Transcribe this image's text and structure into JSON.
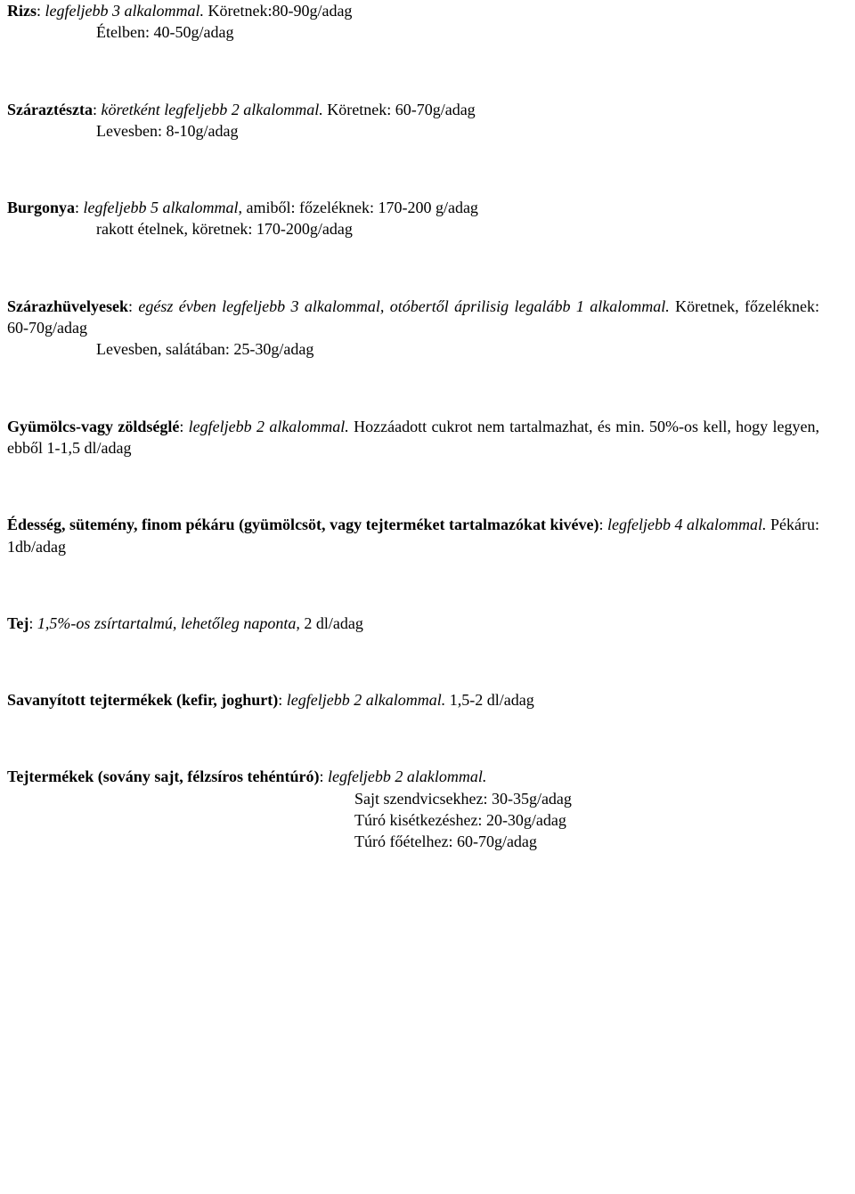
{
  "rizs": {
    "label_bold": "Rizs",
    "label_rest": ": ",
    "desc_italic": "legfeljebb 3 alkalommal.",
    "desc_rest": " Köretnek:80-90g/adag",
    "line2": "Ételben: 40-50g/adag"
  },
  "szaraz": {
    "label_bold": "Száraztészta",
    "sep": ": ",
    "desc_italic": "köretként legfeljebb 2 alkalommal.",
    "desc_rest": " Köretnek: 60-70g/adag",
    "line2": "Levesben: 8-10g/adag"
  },
  "burgonya": {
    "label_bold": "Burgonya",
    "sep": ": ",
    "desc_italic": "legfeljebb 5 alkalommal",
    "rest1": ", amiből: főzeléknek: 170-200 g/adag",
    "line2": "rakott ételnek, köretnek: 170-200g/adag"
  },
  "szarazhuv": {
    "label_bold": "Szárazhüvelyesek",
    "sep": ": ",
    "part1_italic": "egész évben legfeljebb 3 alkalommal, otóbertől áprilisig legalább 1 alkalommal.",
    "rest1": " Köretnek, főzeléknek: 60-70g/adag",
    "line2": "Levesben, salátában: 25-30g/adag"
  },
  "juice": {
    "label_bold": "Gyümölcs-vagy zöldséglé",
    "sep": ": ",
    "italic1": "legfeljebb 2 alkalommal.",
    "rest": " Hozzáadott cukrot nem tartalmazhat, és min. 50%-os kell, hogy legyen, ebből 1-1,5 dl/adag"
  },
  "edesseg": {
    "label_bold": "Édesség, sütemény, finom pékáru (gyümölcsöt, vagy tejterméket tartalmazókat kivéve)",
    "sep": ": ",
    "italic1": "legfeljebb 4 alkalommal.",
    "rest": " Pékáru: 1db/adag"
  },
  "tej": {
    "label_bold": "Tej",
    "sep": ": ",
    "italic1": "1,5%-os zsírtartalmú, lehetőleg naponta,",
    "rest": " 2 dl/adag"
  },
  "savany": {
    "label_bold": "Savanyított tejtermékek (kefir, joghurt)",
    "sep": ": ",
    "italic1": "legfeljebb 2 alkalommal.",
    "rest": " 1,5-2 dl/adag"
  },
  "tejterm": {
    "label_bold": "Tejtermékek (sovány sajt, félzsíros tehéntúró)",
    "sep": ": ",
    "italic1": "legfeljebb 2 alaklommal.",
    "line2": "Sajt szendvicsekhez: 30-35g/adag",
    "line3": "Túró kisétkezéshez: 20-30g/adag",
    "line4": "Túró főételhez: 60-70g/adag"
  }
}
